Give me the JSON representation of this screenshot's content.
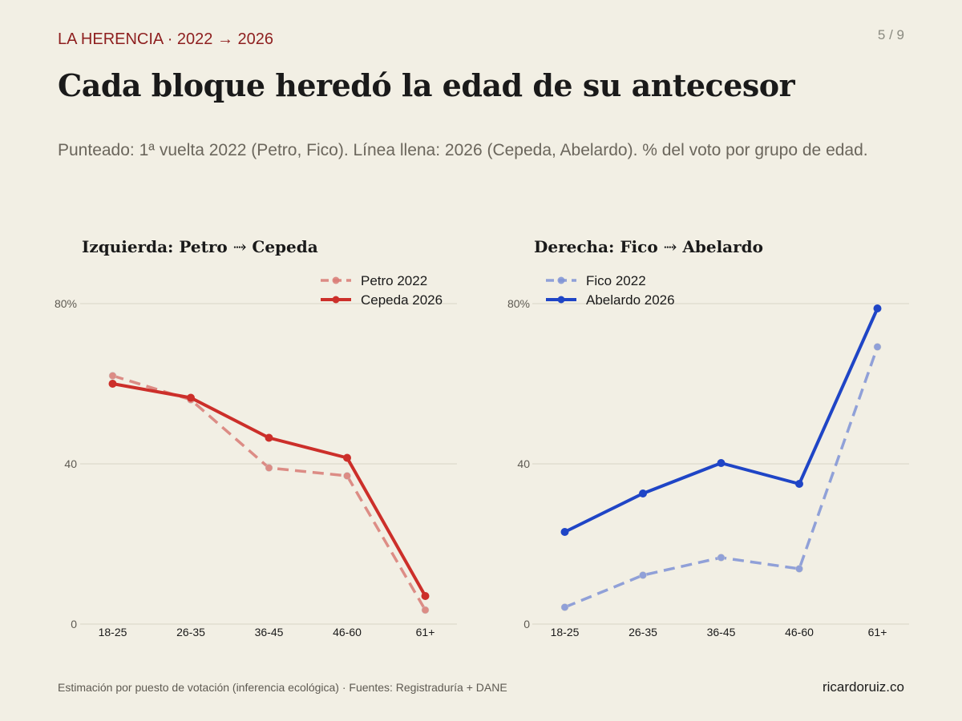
{
  "header": {
    "kicker": "LA HERENCIA · 2022 → 2026",
    "page": "5 / 9",
    "title": "Cada bloque heredó la edad de su antecesor",
    "subtitle": "Punteado: 1ª vuelta 2022 (Petro, Fico). Línea llena: 2026 (Cepeda, Abelardo). % del voto por grupo de edad."
  },
  "footer": {
    "note": "Estimación por puesto de votación (inferencia ecológica) · Fuentes: Registraduría + DANE",
    "site": "ricardoruiz.co"
  },
  "chart_data": [
    {
      "type": "line",
      "title": "Izquierda: Petro ⤑ Cepeda",
      "categories": [
        "18-25",
        "26-35",
        "36-45",
        "46-60",
        "61+"
      ],
      "yticks": [
        "0",
        "40",
        "80%"
      ],
      "ylim": [
        0,
        80
      ],
      "grid": true,
      "legend_position": "top-right",
      "series": [
        {
          "name": "Petro 2022",
          "values": [
            62,
            56,
            39,
            37,
            3.5
          ],
          "style": "dashed",
          "color": "#d97b75"
        },
        {
          "name": "Cepeda 2026",
          "values": [
            60,
            56.5,
            46.5,
            41.5,
            7
          ],
          "style": "solid",
          "color": "#cc2f2a"
        }
      ]
    },
    {
      "type": "line",
      "title": "Derecha: Fico ⤑ Abelardo",
      "categories": [
        "18-25",
        "26-35",
        "36-45",
        "46-60",
        "61+"
      ],
      "yticks": [
        "0",
        "40",
        "80%"
      ],
      "ylim": [
        0,
        80
      ],
      "grid": true,
      "legend_position": "top-left",
      "series": [
        {
          "name": "Fico 2022",
          "values": [
            4.2,
            12.2,
            16.6,
            13.8,
            69.2
          ],
          "style": "dashed",
          "color": "#7f93d6"
        },
        {
          "name": "Abelardo 2026",
          "values": [
            23,
            32.6,
            40.2,
            35,
            78.8
          ],
          "style": "solid",
          "color": "#1f45c6"
        }
      ]
    }
  ]
}
